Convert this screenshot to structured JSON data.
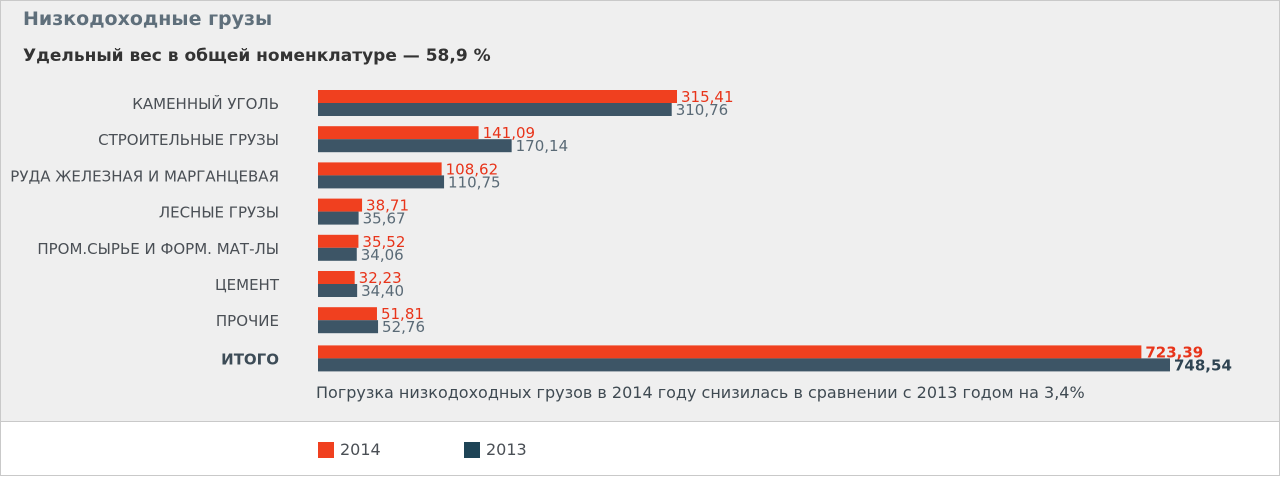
{
  "header": {
    "title": "Низкодоходные грузы",
    "subtitle": "Удельный вес в общей номенклатуре — 58,9 %"
  },
  "note": "Погрузка низкодоходных грузов в 2014 году снизилась в сравнении с 2013 годом на 3,4%",
  "colors": {
    "s2014": "#f0401f",
    "s2013": "#3d5566",
    "s2013_text": "#5a6a76",
    "s2014_text": "#e8341a"
  },
  "legend": {
    "s2014": "2014",
    "s2013": "2013"
  },
  "chart_data": {
    "type": "bar",
    "orientation": "horizontal",
    "categories": [
      "КАМЕННЫЙ УГОЛЬ",
      "СТРОИТЕЛЬНЫЕ ГРУЗЫ",
      "РУДА ЖЕЛЕЗНАЯ И МАРГАНЦЕВАЯ",
      "ЛЕСНЫЕ ГРУЗЫ",
      "ПРОМ.СЫРЬЕ И ФОРМ. МАТ-ЛЫ",
      "ЦЕМЕНТ",
      "ПРОЧИЕ",
      "ИТОГО"
    ],
    "series": [
      {
        "name": "2014",
        "values": [
          315.41,
          141.09,
          108.62,
          38.71,
          35.52,
          32.23,
          51.81,
          723.39
        ],
        "labels": [
          "315,41",
          "141,09",
          "108,62",
          "38,71",
          "35,52",
          "32,23",
          "51,81",
          "723,39"
        ]
      },
      {
        "name": "2013",
        "values": [
          310.76,
          170.14,
          110.75,
          35.67,
          34.06,
          34.4,
          52.76,
          748.54
        ],
        "labels": [
          "310,76",
          "170,14",
          "110,75",
          "35,67",
          "34,06",
          "34,40",
          "52,76",
          "748,54"
        ]
      }
    ],
    "title": "Низкодоходные грузы",
    "xlim": [
      0,
      748.54
    ],
    "legend_position": "bottom"
  }
}
